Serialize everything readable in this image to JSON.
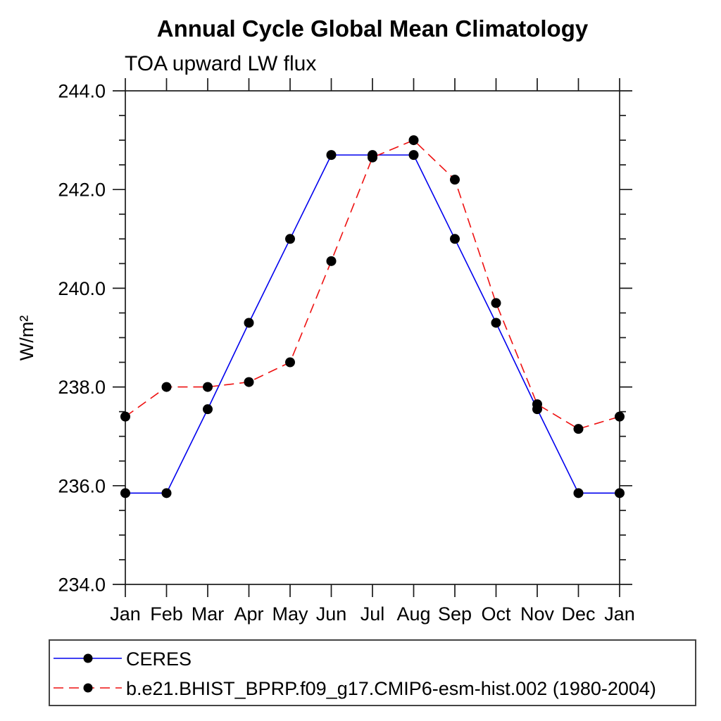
{
  "title": "Annual Cycle Global Mean Climatology",
  "subtitle": "TOA upward LW flux",
  "chart_data": {
    "type": "line",
    "categories": [
      "Jan",
      "Feb",
      "Mar",
      "Apr",
      "May",
      "Jun",
      "Jul",
      "Aug",
      "Sep",
      "Oct",
      "Nov",
      "Dec",
      "Jan"
    ],
    "series": [
      {
        "name": "CERES",
        "color": "#0000ee",
        "line_style": "solid",
        "marker": "filled-circle",
        "marker_color": "#000000",
        "values": [
          235.85,
          235.85,
          237.55,
          239.3,
          241.0,
          242.7,
          242.7,
          242.7,
          241.0,
          239.3,
          237.55,
          235.85,
          235.85
        ]
      },
      {
        "name": "b.e21.BHIST_BPRP.f09_g17.CMIP6-esm-hist.002 (1980-2004)",
        "color": "#ee1111",
        "line_style": "dashed",
        "marker": "filled-circle",
        "marker_color": "#000000",
        "values": [
          237.4,
          238.0,
          238.0,
          238.1,
          238.5,
          240.55,
          242.65,
          243.0,
          242.2,
          239.7,
          237.65,
          237.15,
          237.4
        ]
      }
    ],
    "xlabel": "",
    "ylabel": "W/m²",
    "ylim": [
      234.0,
      244.0
    ],
    "ytick_major_step": 2.0,
    "ytick_minor_step": 0.5,
    "ytick_labels": [
      "234.0",
      "236.0",
      "238.0",
      "240.0",
      "242.0",
      "244.0"
    ],
    "grid": false,
    "tick_direction": "out",
    "legend_position": "bottom-left-box"
  },
  "frame_color": "#1a1a1a",
  "background_color": "#ffffff"
}
